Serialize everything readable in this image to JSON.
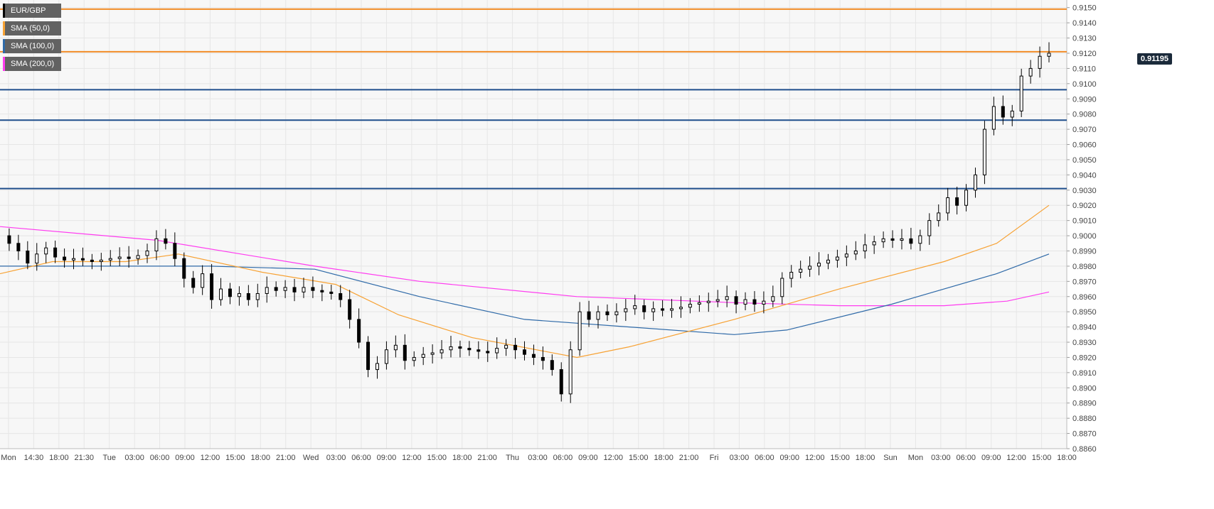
{
  "legend": {
    "pair": "EUR/GBP",
    "sma50": "SMA (50,0)",
    "sma100": "SMA (100,0)",
    "sma200": "SMA (200,0)"
  },
  "current_price_label": "0.91195",
  "colors": {
    "background": "#f7f7f7",
    "grid": "#e6e6e6",
    "candle_up": "#ffffff",
    "candle_down": "#000000",
    "sma50": "#f7a234",
    "sma100": "#2f6aa8",
    "sma200": "#ff3cf0",
    "level_orange": "#f28c28",
    "level_blue": "#1f4e8c",
    "price_badge": "#1b2a3a"
  },
  "chart_data": {
    "type": "candlestick",
    "title": "EUR/GBP",
    "ylim": [
      0.886,
      0.9155
    ],
    "y_ticks": [
      "0.9150",
      "0.9140",
      "0.9130",
      "0.9120",
      "0.9110",
      "0.9100",
      "0.9090",
      "0.9080",
      "0.9070",
      "0.9060",
      "0.9050",
      "0.9040",
      "0.9030",
      "0.9020",
      "0.9010",
      "0.9000",
      "0.8990",
      "0.8980",
      "0.8970",
      "0.8960",
      "0.8950",
      "0.8940",
      "0.8930",
      "0.8920",
      "0.8910",
      "0.8900",
      "0.8890",
      "0.8880",
      "0.8870",
      "0.8860"
    ],
    "x_ticks": [
      "Mon",
      "14:30",
      "18:00",
      "21:30",
      "Tue",
      "03:00",
      "06:00",
      "09:00",
      "12:00",
      "15:00",
      "18:00",
      "21:00",
      "Wed",
      "03:00",
      "06:00",
      "09:00",
      "12:00",
      "15:00",
      "18:00",
      "21:00",
      "Thu",
      "03:00",
      "06:00",
      "09:00",
      "12:00",
      "15:00",
      "18:00",
      "21:00",
      "Fri",
      "03:00",
      "06:00",
      "09:00",
      "12:00",
      "15:00",
      "18:00",
      "Sun",
      "Mon",
      "03:00",
      "06:00",
      "09:00",
      "12:00",
      "15:00",
      "18:00"
    ],
    "horizontal_levels": [
      {
        "value": 0.9149,
        "color": "orange"
      },
      {
        "value": 0.9121,
        "color": "orange"
      },
      {
        "value": 0.9096,
        "color": "blue"
      },
      {
        "value": 0.9076,
        "color": "blue"
      },
      {
        "value": 0.9031,
        "color": "blue"
      }
    ],
    "current_price": 0.91195,
    "price_path": [
      0.9,
      0.8995,
      0.899,
      0.8982,
      0.8988,
      0.8992,
      0.8986,
      0.8984,
      0.8985,
      0.8984,
      0.8983,
      0.8984,
      0.8985,
      0.8986,
      0.8985,
      0.8987,
      0.899,
      0.8998,
      0.8995,
      0.8985,
      0.8972,
      0.8966,
      0.8975,
      0.8958,
      0.8965,
      0.896,
      0.8962,
      0.8958,
      0.8962,
      0.8966,
      0.8964,
      0.8966,
      0.8963,
      0.8966,
      0.8964,
      0.8963,
      0.8962,
      0.8958,
      0.8945,
      0.893,
      0.8912,
      0.8916,
      0.8925,
      0.8928,
      0.8918,
      0.892,
      0.8922,
      0.8923,
      0.8925,
      0.8927,
      0.8926,
      0.8925,
      0.8924,
      0.8923,
      0.8926,
      0.8928,
      0.8925,
      0.8922,
      0.892,
      0.8918,
      0.8912,
      0.8896,
      0.8925,
      0.895,
      0.8945,
      0.895,
      0.8948,
      0.895,
      0.8952,
      0.8954,
      0.895,
      0.8952,
      0.8951,
      0.8952,
      0.8953,
      0.8955,
      0.8956,
      0.8957,
      0.8958,
      0.896,
      0.8955,
      0.8958,
      0.8955,
      0.8957,
      0.896,
      0.8972,
      0.8976,
      0.8978,
      0.898,
      0.8982,
      0.8984,
      0.8986,
      0.8988,
      0.899,
      0.8994,
      0.8996,
      0.8998,
      0.8997,
      0.8998,
      0.8995,
      0.9,
      0.901,
      0.9015,
      0.9025,
      0.902,
      0.903,
      0.904,
      0.907,
      0.9085,
      0.9078,
      0.9082,
      0.9105,
      0.911,
      0.9118,
      0.912
    ],
    "sma50": [
      [
        0,
        0.8975
      ],
      [
        0.05,
        0.8983
      ],
      [
        0.12,
        0.8983
      ],
      [
        0.17,
        0.8988
      ],
      [
        0.25,
        0.8976
      ],
      [
        0.32,
        0.8968
      ],
      [
        0.38,
        0.8948
      ],
      [
        0.45,
        0.8933
      ],
      [
        0.55,
        0.892
      ],
      [
        0.6,
        0.8927
      ],
      [
        0.7,
        0.8945
      ],
      [
        0.8,
        0.8965
      ],
      [
        0.9,
        0.8983
      ],
      [
        0.95,
        0.8995
      ],
      [
        1.0,
        0.902
      ]
    ],
    "sma100": [
      [
        0,
        0.898
      ],
      [
        0.1,
        0.898
      ],
      [
        0.2,
        0.898
      ],
      [
        0.3,
        0.8978
      ],
      [
        0.4,
        0.896
      ],
      [
        0.5,
        0.8945
      ],
      [
        0.6,
        0.894
      ],
      [
        0.7,
        0.8935
      ],
      [
        0.75,
        0.8938
      ],
      [
        0.85,
        0.8955
      ],
      [
        0.95,
        0.8975
      ],
      [
        1.0,
        0.8988
      ]
    ],
    "sma200": [
      [
        0,
        0.9006
      ],
      [
        0.15,
        0.8997
      ],
      [
        0.3,
        0.898
      ],
      [
        0.4,
        0.897
      ],
      [
        0.55,
        0.896
      ],
      [
        0.7,
        0.8956
      ],
      [
        0.8,
        0.8954
      ],
      [
        0.9,
        0.8954
      ],
      [
        0.96,
        0.8957
      ],
      [
        1.0,
        0.8963
      ]
    ]
  }
}
